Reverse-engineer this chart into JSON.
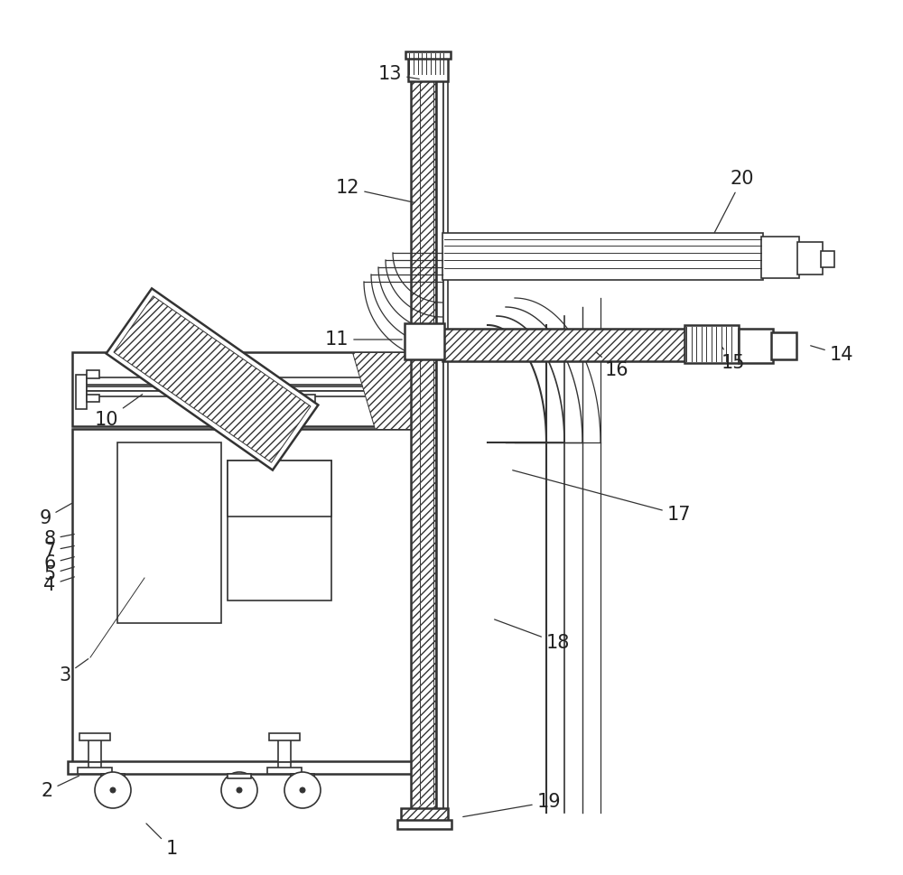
{
  "bg_color": "#ffffff",
  "lc": "#333333",
  "figsize": [
    10.0,
    9.69
  ],
  "dpi": 100,
  "leaders": [
    [
      "1",
      190,
      940,
      160,
      910
    ],
    [
      "2",
      52,
      876,
      90,
      858
    ],
    [
      "3",
      72,
      748,
      100,
      728
    ],
    [
      "4",
      55,
      648,
      85,
      638
    ],
    [
      "5",
      55,
      636,
      85,
      627
    ],
    [
      "6",
      55,
      624,
      85,
      616
    ],
    [
      "7",
      55,
      610,
      85,
      604
    ],
    [
      "8",
      55,
      597,
      85,
      591
    ],
    [
      "9",
      50,
      574,
      82,
      556
    ],
    [
      "10",
      118,
      465,
      160,
      435
    ],
    [
      "11",
      373,
      376,
      448,
      376
    ],
    [
      "12",
      385,
      208,
      462,
      225
    ],
    [
      "13",
      432,
      82,
      467,
      88
    ],
    [
      "14",
      932,
      393,
      895,
      382
    ],
    [
      "15",
      812,
      402,
      798,
      382
    ],
    [
      "16",
      683,
      410,
      658,
      388
    ],
    [
      "17",
      752,
      570,
      565,
      520
    ],
    [
      "18",
      618,
      712,
      545,
      685
    ],
    [
      "19",
      608,
      888,
      510,
      905
    ],
    [
      "20",
      822,
      198,
      790,
      260
    ]
  ]
}
